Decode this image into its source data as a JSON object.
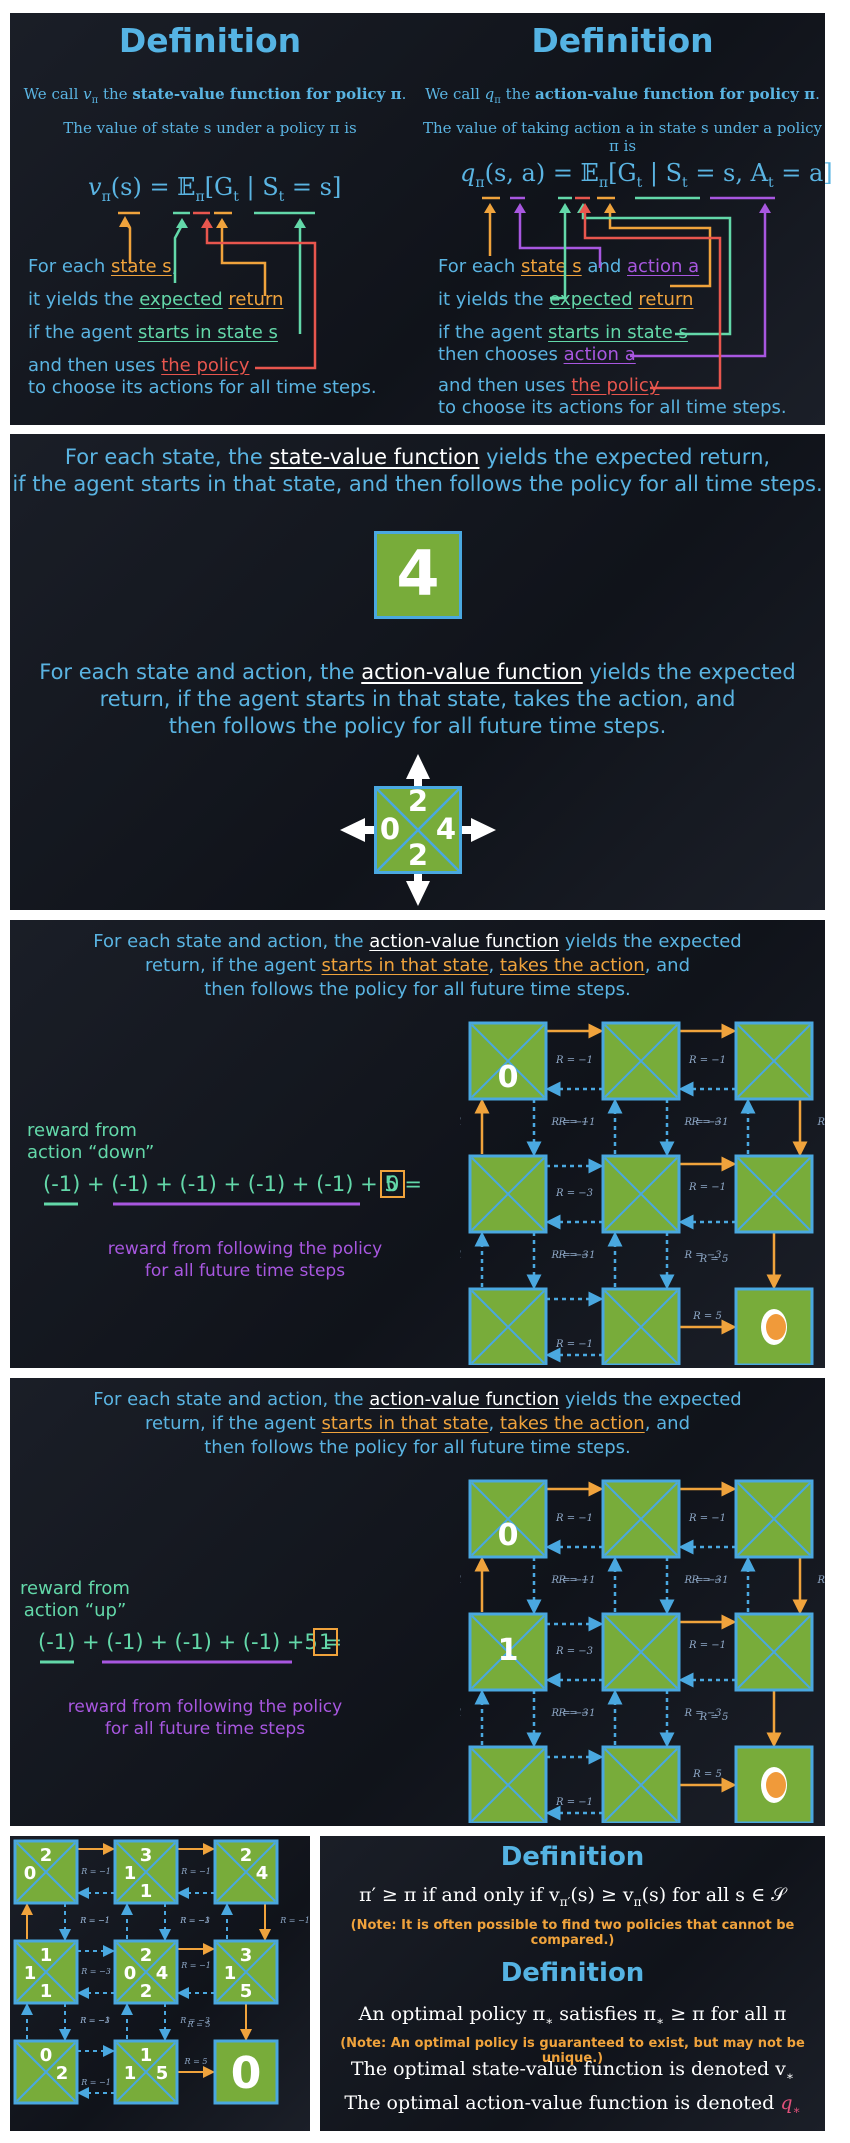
{
  "p1": {
    "left": {
      "heading": "Definition",
      "intro1a": "We call ",
      "intro1_sym": "v",
      "intro1_sub": "π",
      "intro1b": " the ",
      "intro1_bold": "state-value function for policy π",
      "intro1c": ".",
      "intro2": "The value of state s under a policy π is",
      "eq": "v",
      "eq_sub": "π",
      "eq_rest": "(s) = 𝔼",
      "eq_e_sub": "π",
      "eq_bracket": "[G",
      "eq_gt_sub": "t",
      "eq_cond": " | S",
      "eq_st_sub": "t",
      "eq_end": " = s]",
      "l1a": "For each ",
      "l1b": "state s",
      "l1c": ",",
      "l2a": "it yields the ",
      "l2b": "expected",
      "l2c": " ",
      "l2d": "return",
      "l3a": "if the agent ",
      "l3b": "starts in state s",
      "l4a": "and then uses ",
      "l4b": "the policy",
      "l5": "to choose its actions for all time steps."
    },
    "right": {
      "heading": "Definition",
      "intro1a": "We call ",
      "intro1_sym": "q",
      "intro1_sub": "π",
      "intro1b": " the ",
      "intro1_bold": "action-value function for policy π",
      "intro1c": ".",
      "intro2": "The value of taking action a in state s under a policy π is",
      "eq": "q",
      "eq_sub": "π",
      "eq_rest": "(s, a) = 𝔼",
      "eq_e_sub": "π",
      "eq_bracket": "[G",
      "eq_gt_sub": "t",
      "eq_cond": " | S",
      "eq_st_sub": "t",
      "eq_mid": " = s, A",
      "eq_at_sub": "t",
      "eq_end": " = a]",
      "l1a": "For each ",
      "l1b": "state s",
      "l1c": " and ",
      "l1d": "action a",
      "l2a": "it yields the ",
      "l2b": "expected",
      "l2c": " ",
      "l2d": "return",
      "l3a": "if the agent ",
      "l3b": "starts in state s",
      "l4a": "then chooses ",
      "l4b": "action a",
      "l5a": "and then uses ",
      "l5b": "the policy",
      "l6": "to choose its actions for all time steps."
    }
  },
  "p2": {
    "line1a": "For each state, the ",
    "line1b": "state-value function",
    "line1c": " yields the expected return,",
    "line2": "if the agent starts in that state, and then follows the policy for all time steps.",
    "value": "4",
    "para2_a": "For each state and action, the ",
    "para2_b": "action-value function",
    "para2_c": " yields the expected",
    "para2_l2": "return, if the agent starts in that state, takes the action, and",
    "para2_l3": "then follows the policy for all future time steps.",
    "q_up": "2",
    "q_left": "0",
    "q_right": "4",
    "q_down": "2"
  },
  "p3": {
    "l1a": "For each state and action, the ",
    "l1b": "action-value function",
    "l1c": " yields the expected",
    "l2a": "return, if the agent ",
    "l2b": "starts in that state",
    "l2c": ", ",
    "l2d": "takes the action",
    "l2e": ", and",
    "l3": "then follows the policy for all future time steps.",
    "reward_label1": "reward from",
    "reward_label2": "action “down”",
    "sum": "(-1) + (-1) + (-1) + (-1) + (-1) + 5 =",
    "result": "0",
    "follow1": "reward from following the policy",
    "follow2": "for all future time steps",
    "cell_value": "0"
  },
  "p4": {
    "l1a": "For each state and action, the ",
    "l1b": "action-value function",
    "l1c": " yields the expected",
    "l2a": "return, if the agent ",
    "l2b": "starts in that state",
    "l2c": ", ",
    "l2d": "takes the action",
    "l2e": ", and",
    "l3": "then follows the policy for all future time steps.",
    "reward_label1": "reward from",
    "reward_label2": "action “up”",
    "sum": "(-1) + (-1) + (-1) + (-1) +5 =",
    "result": "1",
    "follow1": "reward from following the policy",
    "follow2": "for all future time steps",
    "cell_top": "0",
    "cell_mid": "1"
  },
  "grid": {
    "r_m1": "R = −1",
    "r_m3": "R = −3",
    "r_5": "R = 5"
  },
  "p5": {
    "q": [
      {
        "up": "2",
        "left": "0",
        "right": "",
        "down": ""
      },
      {
        "up": "3",
        "left": "1",
        "right": "",
        "down": "1"
      },
      {
        "up": "2",
        "left": "",
        "right": "4",
        "down": ""
      },
      {
        "up": "1",
        "left": "1",
        "right": "",
        "down": "1"
      },
      {
        "up": "2",
        "left": "0",
        "right": "4",
        "down": "2"
      },
      {
        "up": "3",
        "left": "1",
        "right": "",
        "down": "5"
      },
      {
        "up": "0",
        "left": "",
        "right": "2",
        "down": ""
      },
      {
        "up": "1",
        "left": "1",
        "right": "5",
        "down": ""
      }
    ],
    "terminal": "0"
  },
  "p6": {
    "def1": "Definition",
    "def1_line": "π′ ≥ π if and only if v",
    "def1_sub1": "π′",
    "def1_mid": "(s) ≥ v",
    "def1_sub2": "π",
    "def1_end": "(s) for all s ∈ 𝒮",
    "note1": "(Note: It is often possible to find two policies that cannot be compared.)",
    "def2": "Definition",
    "def2_line": "An optimal policy π",
    "def2_sub": "∗",
    "def2_end": " satisfies π",
    "def2_sub2": "∗",
    "def2_end2": " ≥ π for all π",
    "note2": "(Note: An optimal policy is guaranteed to exist, but may not be unique.)",
    "opt_v": "The optimal state-value function is denoted v",
    "opt_v_sub": "∗",
    "opt_q": "The optimal action-value function is denoted ",
    "opt_q_sym": "q",
    "opt_q_sub": "∗"
  },
  "colors": {
    "blue": "#5ab4e2",
    "orange": "#f0a33c",
    "green": "#63d8a9",
    "red": "#e8564e",
    "purple": "#a857e0",
    "cell": "#78ac3a",
    "terminal_dot": "#f09a3a"
  }
}
